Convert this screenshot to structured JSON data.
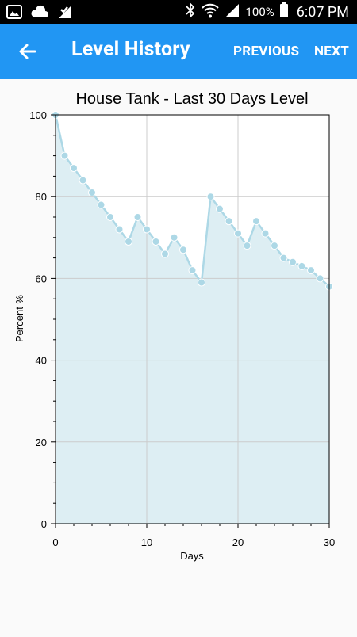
{
  "status": {
    "battery_percent": "100%",
    "time": "6:07 PM"
  },
  "header": {
    "title": "Level History",
    "previous_label": "PREVIOUS",
    "next_label": "NEXT",
    "background_color": "#2196F3"
  },
  "chart_data": {
    "type": "area",
    "title": "House Tank - Last 30 Days Level",
    "xlabel": "Days",
    "ylabel": "Percent %",
    "xlim": [
      0,
      30
    ],
    "ylim": [
      0,
      100
    ],
    "x_ticks": [
      0,
      10,
      20,
      30
    ],
    "y_ticks": [
      0,
      20,
      40,
      60,
      80,
      100
    ],
    "grid": true,
    "x": [
      0,
      1,
      2,
      3,
      4,
      5,
      6,
      7,
      8,
      9,
      10,
      11,
      12,
      13,
      14,
      15,
      16,
      17,
      18,
      19,
      20,
      21,
      22,
      23,
      24,
      25,
      26,
      27,
      28,
      29,
      30
    ],
    "values": [
      100,
      90,
      87,
      84,
      81,
      78,
      75,
      72,
      69,
      75,
      72,
      69,
      66,
      70,
      67,
      62,
      59,
      80,
      77,
      74,
      71,
      68,
      74,
      71,
      68,
      65,
      64,
      63,
      62,
      60,
      58
    ],
    "line_color": "#add8e6",
    "fill_color": "#ddeef3"
  }
}
